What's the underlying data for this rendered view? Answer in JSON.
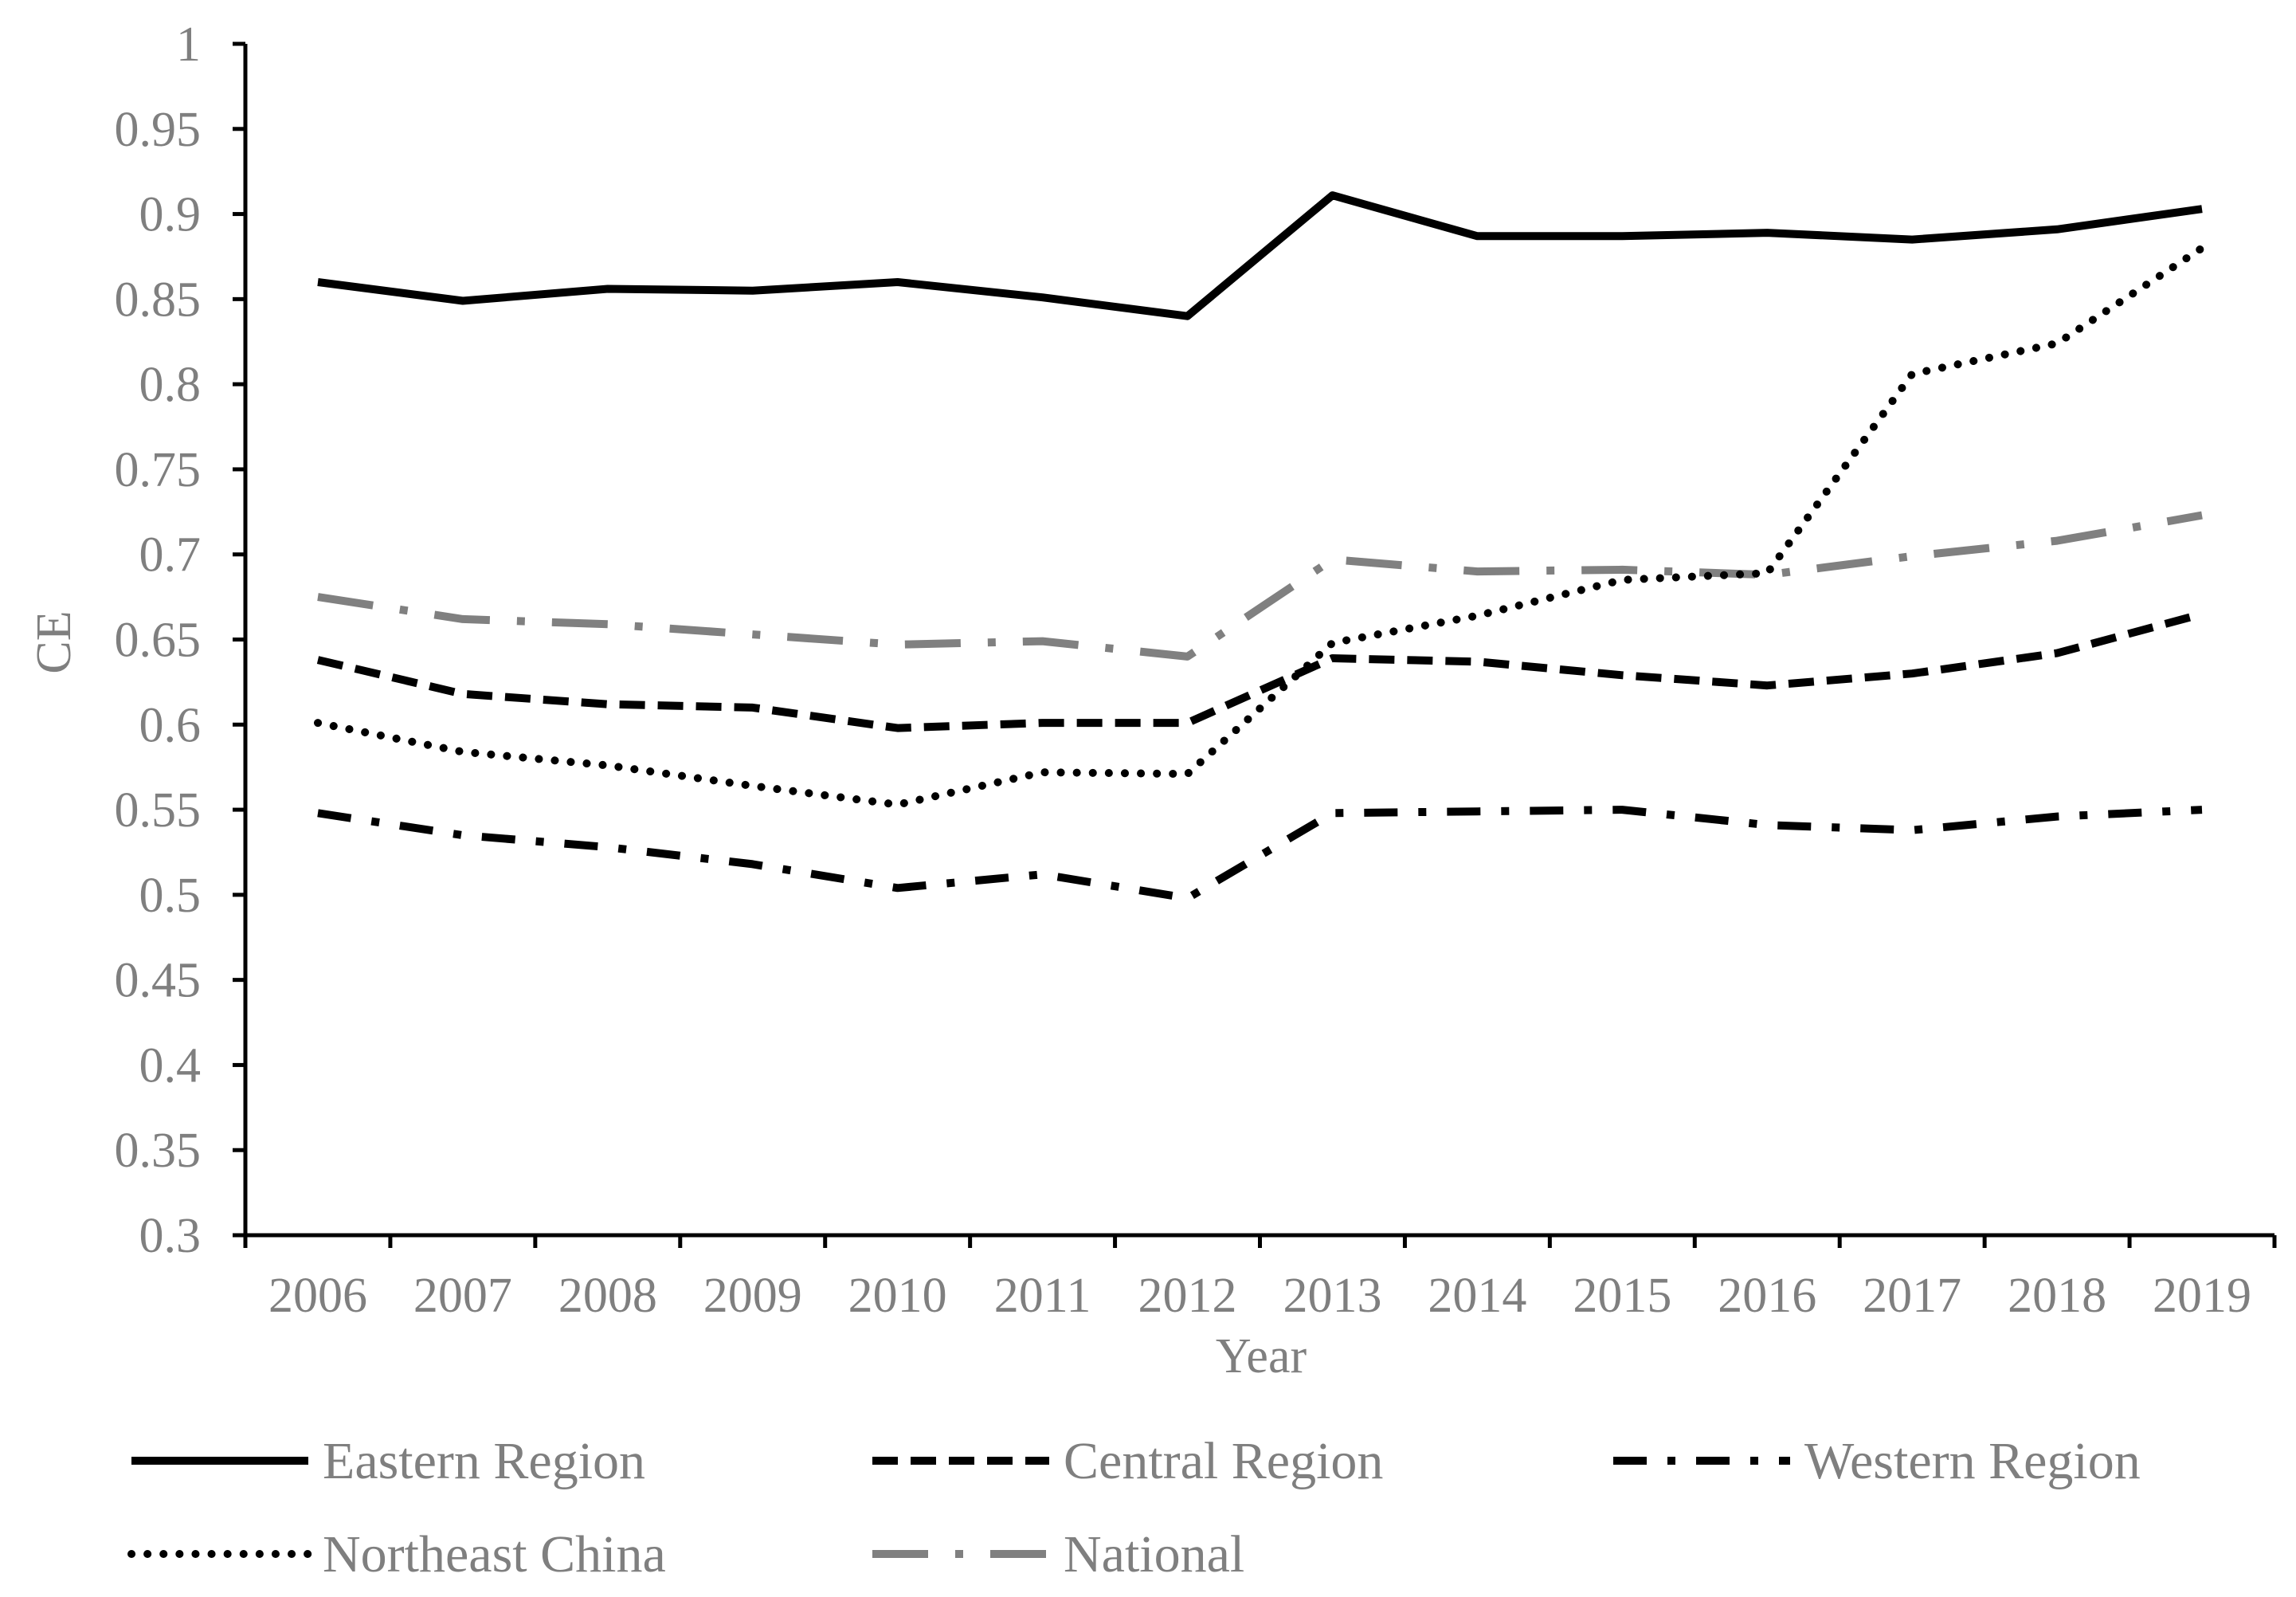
{
  "chart_data": {
    "type": "line",
    "title": "",
    "xlabel": "Year",
    "ylabel": "CE",
    "ylim": [
      0.3,
      1
    ],
    "ytick_step": 0.05,
    "ytick_labels": [
      "0.3",
      "0.35",
      "0.4",
      "0.45",
      "0.5",
      "0.55",
      "0.6",
      "0.65",
      "0.7",
      "0.75",
      "0.8",
      "0.85",
      "0.9",
      "0.95",
      "1"
    ],
    "categories": [
      "2006",
      "2007",
      "2008",
      "2009",
      "2010",
      "2011",
      "2012",
      "2013",
      "2014",
      "2015",
      "2016",
      "2017",
      "2018",
      "2019"
    ],
    "grid": false,
    "legend_position": "bottom",
    "series": [
      {
        "name": "Eastern Region",
        "style": "solid",
        "color": "#000000",
        "values": [
          0.86,
          0.849,
          0.856,
          0.855,
          0.86,
          0.851,
          0.84,
          0.911,
          0.887,
          0.887,
          0.889,
          0.885,
          0.891,
          0.903
        ]
      },
      {
        "name": "Central Region",
        "style": "dash",
        "color": "#000000",
        "values": [
          0.638,
          0.618,
          0.612,
          0.61,
          0.598,
          0.601,
          0.601,
          0.639,
          0.637,
          0.629,
          0.623,
          0.63,
          0.642,
          0.665
        ]
      },
      {
        "name": "Western Region",
        "style": "dashdot",
        "color": "#000000",
        "values": [
          0.548,
          0.535,
          0.528,
          0.518,
          0.504,
          0.512,
          0.498,
          0.548,
          0.549,
          0.55,
          0.541,
          0.538,
          0.546,
          0.55
        ]
      },
      {
        "name": "Northeast China",
        "style": "dot",
        "color": "#000000",
        "values": [
          0.601,
          0.584,
          0.576,
          0.564,
          0.553,
          0.572,
          0.571,
          0.648,
          0.664,
          0.685,
          0.689,
          0.806,
          0.824,
          0.88
        ]
      },
      {
        "name": "National",
        "style": "longdashdot",
        "color": "#808080",
        "values": [
          0.675,
          0.662,
          0.659,
          0.653,
          0.647,
          0.649,
          0.64,
          0.697,
          0.69,
          0.691,
          0.688,
          0.699,
          0.708,
          0.723
        ]
      }
    ]
  }
}
